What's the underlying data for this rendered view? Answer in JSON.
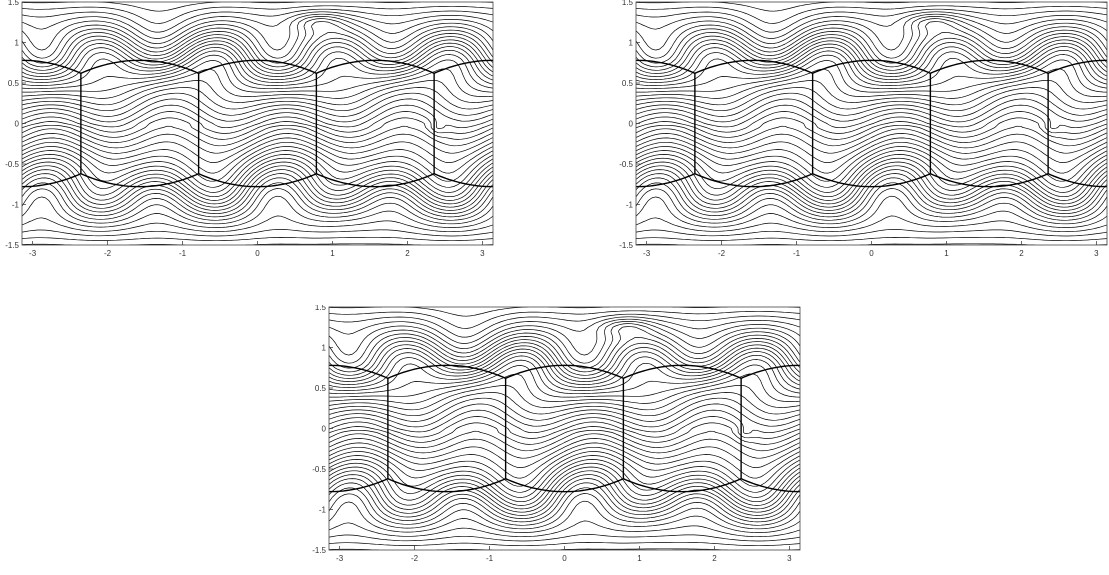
{
  "chart_data": [
    {
      "type": "contour",
      "title": "",
      "xlabel": "",
      "ylabel": "",
      "xlim": [
        -3.1416,
        3.1416
      ],
      "ylim": [
        -1.5,
        1.5
      ],
      "xticks": [
        -3,
        -2,
        -1,
        0,
        1,
        2,
        3
      ],
      "yticks": [
        1.5,
        1,
        0.5,
        0,
        -0.5,
        -1,
        -1.5
      ],
      "grid": false,
      "legend": "none",
      "overlay": {
        "boundary_y": 0.78,
        "vertical_lines_x": [
          -2.3562,
          -0.7854,
          0.7854,
          2.3562
        ],
        "vertical_line_y_range": [
          -0.62,
          0.62
        ]
      },
      "line_color": "#000000"
    },
    {
      "type": "contour",
      "title": "",
      "xlabel": "",
      "ylabel": "",
      "xlim": [
        -3.1416,
        3.1416
      ],
      "ylim": [
        -1.5,
        1.5
      ],
      "xticks": [
        -3,
        -2,
        -1,
        0,
        1,
        2,
        3
      ],
      "yticks": [
        1.5,
        1,
        0.5,
        0,
        -0.5,
        -1,
        -1.5
      ],
      "grid": false,
      "legend": "none",
      "overlay": {
        "boundary_y": 0.78,
        "vertical_lines_x": [
          -2.3562,
          -0.7854,
          0.7854,
          2.3562
        ],
        "vertical_line_y_range": [
          -0.62,
          0.62
        ]
      },
      "line_color": "#000000"
    },
    {
      "type": "contour",
      "title": "",
      "xlabel": "",
      "ylabel": "",
      "xlim": [
        -3.1416,
        3.1416
      ],
      "ylim": [
        -1.5,
        1.5
      ],
      "xticks": [
        -3,
        -2,
        -1,
        0,
        1,
        2,
        3
      ],
      "yticks": [
        1.5,
        1,
        0.5,
        0,
        -0.5,
        -1,
        -1.5
      ],
      "grid": false,
      "legend": "none",
      "overlay": {
        "boundary_y": 0.78,
        "vertical_lines_x": [
          -2.3562,
          -0.7854,
          0.7854,
          2.3562
        ],
        "vertical_line_y_range": [
          -0.62,
          0.62
        ]
      },
      "line_color": "#000000"
    }
  ]
}
